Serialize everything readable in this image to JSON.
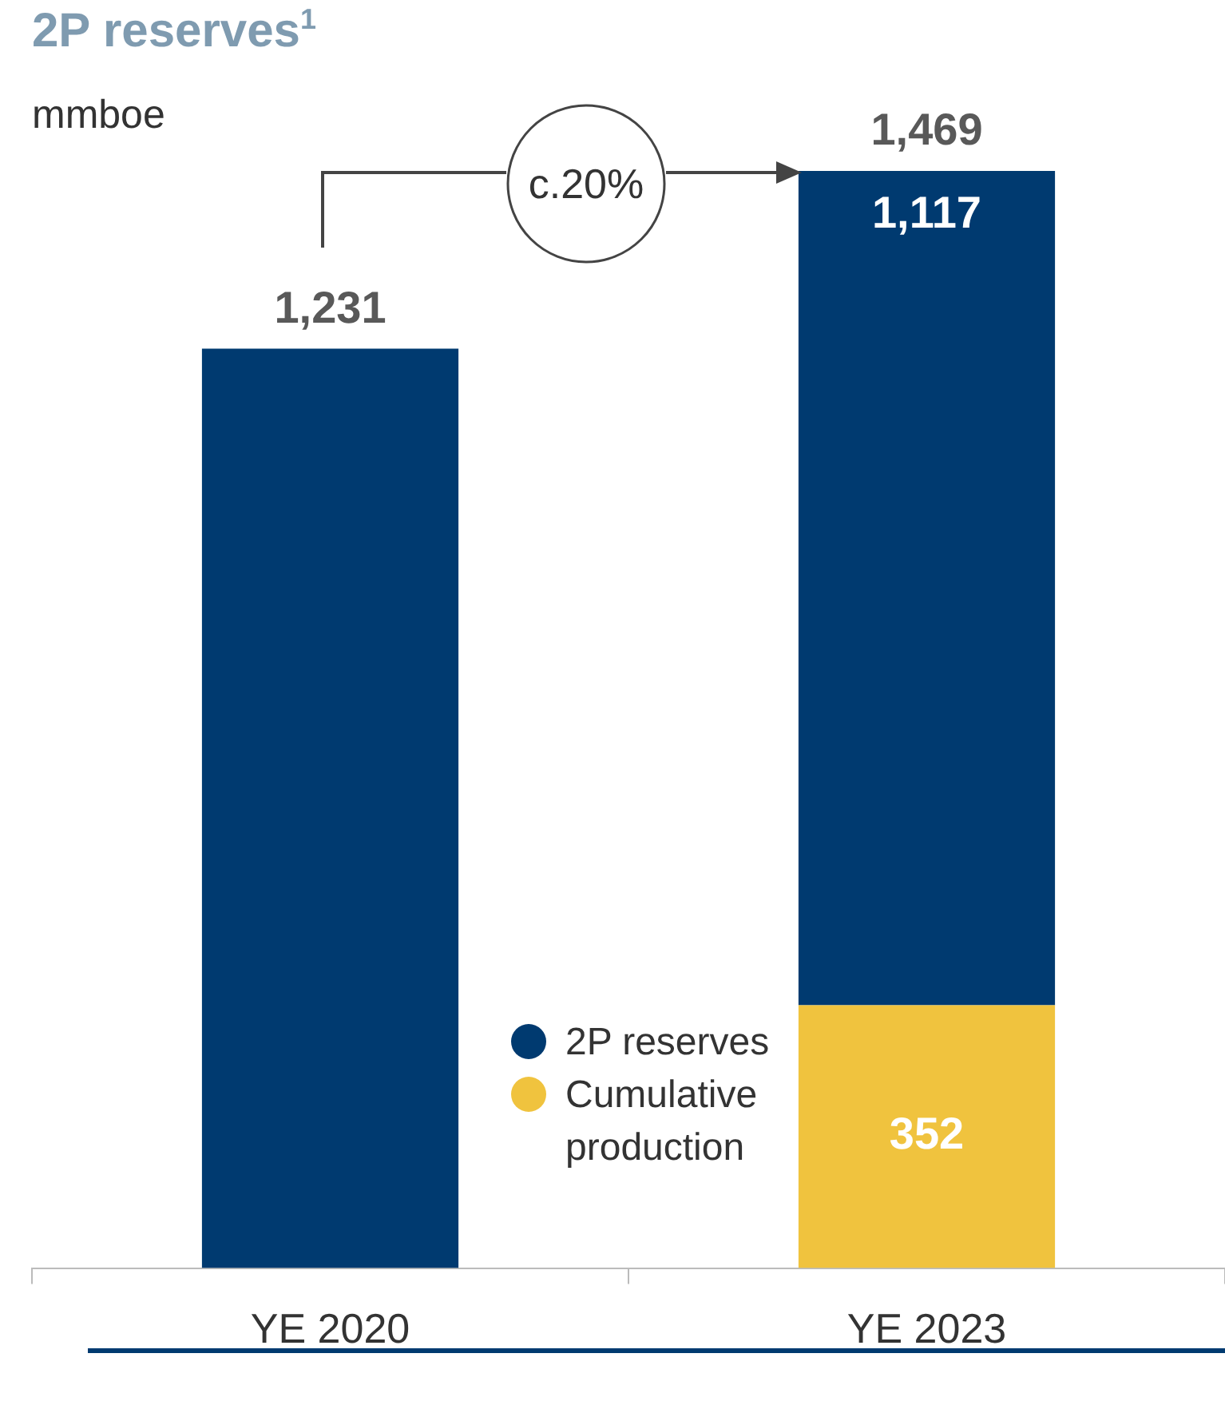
{
  "chart_data": {
    "type": "bar",
    "title": "2P reserves$^{1}$",
    "subtitle": "mmboe",
    "categories": [
      "YE 2020",
      "YE 2023"
    ],
    "stacked": true,
    "ylim": [
      0,
      1469
    ],
    "legend": "bottom",
    "series": [
      {
        "name": "Cumulative production",
        "color": "#f0c33e",
        "values": [
          null,
          352
        ],
        "value_labels": [
          null,
          "352"
        ]
      },
      {
        "name": "2P reserves",
        "color": "#003a70",
        "values": [
          1231,
          1117
        ],
        "value_labels": [
          null,
          "1,117"
        ]
      }
    ],
    "totals": [
      "1,231",
      "1,469"
    ],
    "annotations": [
      "c.20%"
    ]
  }
}
